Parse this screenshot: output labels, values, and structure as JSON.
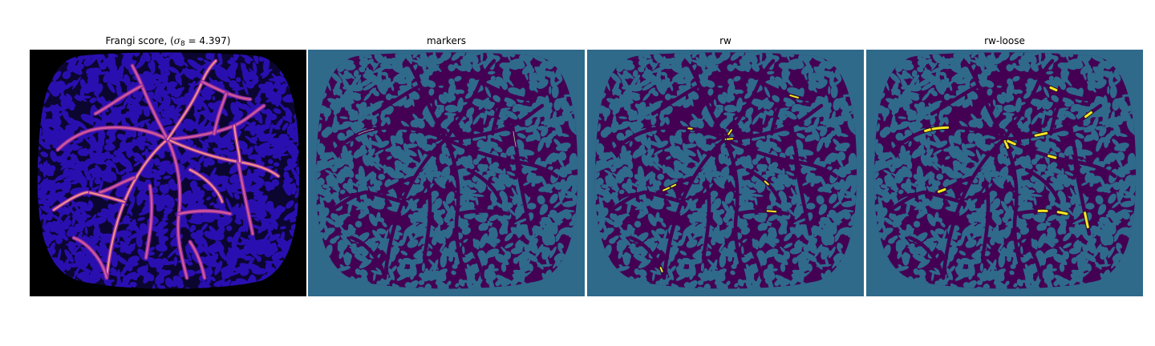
{
  "panels": [
    {
      "title_prefix": "Frangi score, (",
      "symbol": "σ",
      "subscript": "8",
      "title_suffix": " = 4.397)",
      "colormap": "magma",
      "background": "#000000"
    },
    {
      "title": "markers",
      "colormap": "viridis",
      "background": "#2f6a8b"
    },
    {
      "title": "rw",
      "colormap": "viridis",
      "background": "#2f6a8b"
    },
    {
      "title": "rw-loose",
      "colormap": "viridis",
      "background": "#2f6a8b"
    }
  ],
  "colors": {
    "frangi_bg": "#000000",
    "frangi_texture": "#2a0fb0",
    "frangi_vessel_low": "#8a2ba0",
    "frangi_vessel_high": "#f38f8a",
    "seg_bg": "#2f6a8b",
    "seg_region": "#440154",
    "seg_marker": "#fde725"
  }
}
